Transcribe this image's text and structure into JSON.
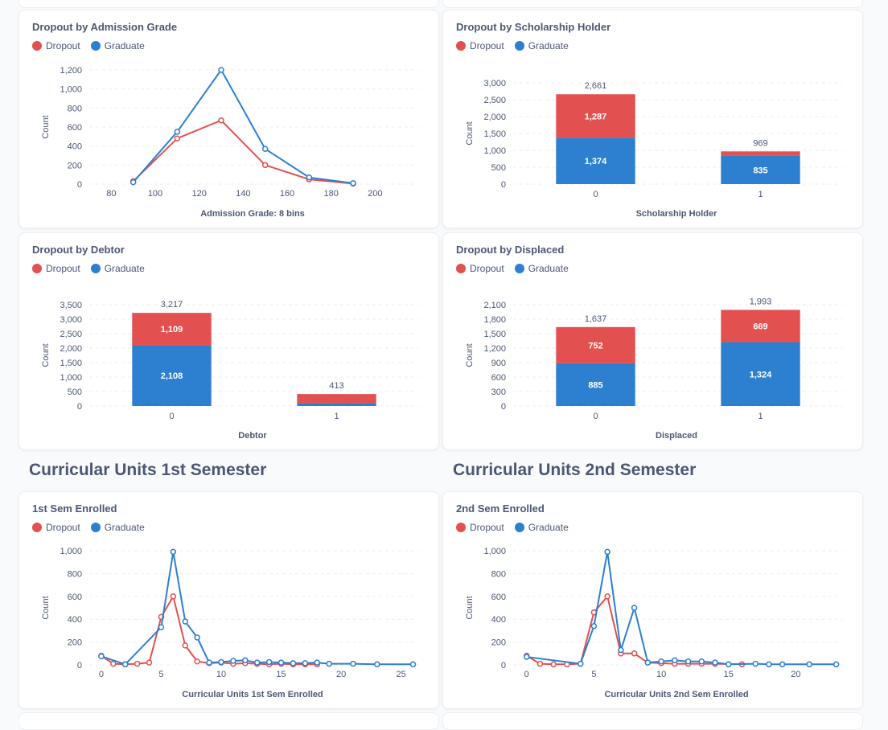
{
  "colors": {
    "dropout": "#e35050",
    "graduate": "#2d7fd0"
  },
  "legend": {
    "dropout": "Dropout",
    "graduate": "Graduate"
  },
  "sections": {
    "first": "Curricular Units 1st Semester",
    "second": "Curricular Units 2nd Semester"
  },
  "chart_data": [
    {
      "id": "admission",
      "type": "line",
      "title": "Dropout by Admission Grade",
      "xlabel": "Admission Grade: 8 bins",
      "ylabel": "Count",
      "xlim": [
        70,
        220
      ],
      "ylim": [
        0,
        1200
      ],
      "xticks": [
        80,
        100,
        120,
        140,
        160,
        180,
        200
      ],
      "yticks": [
        0,
        200,
        400,
        600,
        800,
        1000,
        1200
      ],
      "series": [
        {
          "name": "Dropout",
          "x": [
            90,
            110,
            130,
            150,
            170,
            190
          ],
          "values": [
            30,
            480,
            670,
            200,
            50,
            5
          ]
        },
        {
          "name": "Graduate",
          "x": [
            90,
            110,
            130,
            150,
            170,
            190
          ],
          "values": [
            20,
            550,
            1200,
            370,
            70,
            10
          ]
        }
      ]
    },
    {
      "id": "scholarship",
      "type": "bar",
      "stacked": true,
      "title": "Dropout by Scholarship Holder",
      "xlabel": "Scholarship Holder",
      "ylabel": "Count",
      "categories": [
        "0",
        "1"
      ],
      "ylim": [
        0,
        3000
      ],
      "yticks": [
        0,
        500,
        1000,
        1500,
        2000,
        2500,
        3000
      ],
      "totals": [
        "2,661",
        "969"
      ],
      "series": [
        {
          "name": "Graduate",
          "values": [
            1374,
            835
          ],
          "labels": [
            "1,374",
            "835"
          ]
        },
        {
          "name": "Dropout",
          "values": [
            1287,
            134
          ],
          "labels": [
            "1,287",
            ""
          ]
        }
      ]
    },
    {
      "id": "debtor",
      "type": "bar",
      "stacked": true,
      "title": "Dropout by Debtor",
      "xlabel": "Debtor",
      "ylabel": "Count",
      "categories": [
        "0",
        "1"
      ],
      "ylim": [
        0,
        3500
      ],
      "yticks": [
        0,
        500,
        1000,
        1500,
        2000,
        2500,
        3000,
        3500
      ],
      "totals": [
        "3,217",
        "413"
      ],
      "series": [
        {
          "name": "Graduate",
          "values": [
            2108,
            101
          ],
          "labels": [
            "2,108",
            ""
          ]
        },
        {
          "name": "Dropout",
          "values": [
            1109,
            312
          ],
          "labels": [
            "1,109",
            ""
          ]
        }
      ]
    },
    {
      "id": "displaced",
      "type": "bar",
      "stacked": true,
      "title": "Dropout by Displaced",
      "xlabel": "Displaced",
      "ylabel": "Count",
      "categories": [
        "0",
        "1"
      ],
      "ylim": [
        0,
        2100
      ],
      "yticks": [
        0,
        300,
        600,
        900,
        1200,
        1500,
        1800,
        2100
      ],
      "totals": [
        "1,637",
        "1,993"
      ],
      "series": [
        {
          "name": "Graduate",
          "values": [
            885,
            1324
          ],
          "labels": [
            "885",
            "1,324"
          ]
        },
        {
          "name": "Dropout",
          "values": [
            752,
            669
          ],
          "labels": [
            "752",
            "669"
          ]
        }
      ]
    },
    {
      "id": "sem1",
      "type": "line",
      "title": "1st Sem Enrolled",
      "xlabel": "Curricular Units 1st Sem Enrolled",
      "ylabel": "Count",
      "xlim": [
        -1,
        26.5
      ],
      "ylim": [
        0,
        1000
      ],
      "xticks": [
        0,
        5,
        10,
        15,
        20,
        25
      ],
      "yticks": [
        0,
        200,
        400,
        600,
        800,
        1000
      ],
      "series": [
        {
          "name": "Dropout",
          "x": [
            0,
            1,
            2,
            3,
            4,
            5,
            6,
            7,
            8,
            9,
            10,
            11,
            12,
            13,
            14,
            15,
            16,
            17,
            18
          ],
          "values": [
            80,
            10,
            5,
            10,
            20,
            420,
            600,
            170,
            30,
            15,
            20,
            10,
            15,
            10,
            5,
            10,
            5,
            5,
            5
          ]
        },
        {
          "name": "Graduate",
          "x": [
            0,
            2,
            5,
            6,
            7,
            8,
            9,
            10,
            11,
            12,
            13,
            14,
            15,
            16,
            17,
            18,
            19,
            21,
            23,
            26
          ],
          "values": [
            75,
            5,
            330,
            990,
            380,
            240,
            20,
            25,
            35,
            40,
            20,
            25,
            20,
            15,
            15,
            20,
            10,
            10,
            5,
            5
          ]
        }
      ]
    },
    {
      "id": "sem2",
      "type": "line",
      "title": "2nd Sem Enrolled",
      "xlabel": "Curricular Units 2nd Sem Enrolled",
      "ylabel": "Count",
      "xlim": [
        -1,
        23.5
      ],
      "ylim": [
        0,
        1000
      ],
      "xticks": [
        0,
        5,
        10,
        15,
        20
      ],
      "yticks": [
        0,
        200,
        400,
        600,
        800,
        1000
      ],
      "series": [
        {
          "name": "Dropout",
          "x": [
            0,
            1,
            2,
            3,
            4,
            5,
            6,
            7,
            8,
            9,
            10,
            11,
            12,
            13,
            14,
            16
          ],
          "values": [
            80,
            10,
            5,
            5,
            10,
            460,
            600,
            100,
            100,
            20,
            15,
            10,
            10,
            10,
            10,
            5
          ]
        },
        {
          "name": "Graduate",
          "x": [
            0,
            4,
            5,
            6,
            7,
            8,
            9,
            10,
            11,
            12,
            13,
            14,
            15,
            17,
            18,
            19,
            21,
            23
          ],
          "values": [
            70,
            10,
            340,
            990,
            130,
            500,
            20,
            30,
            40,
            30,
            30,
            20,
            5,
            10,
            5,
            5,
            5,
            5
          ]
        }
      ]
    }
  ]
}
